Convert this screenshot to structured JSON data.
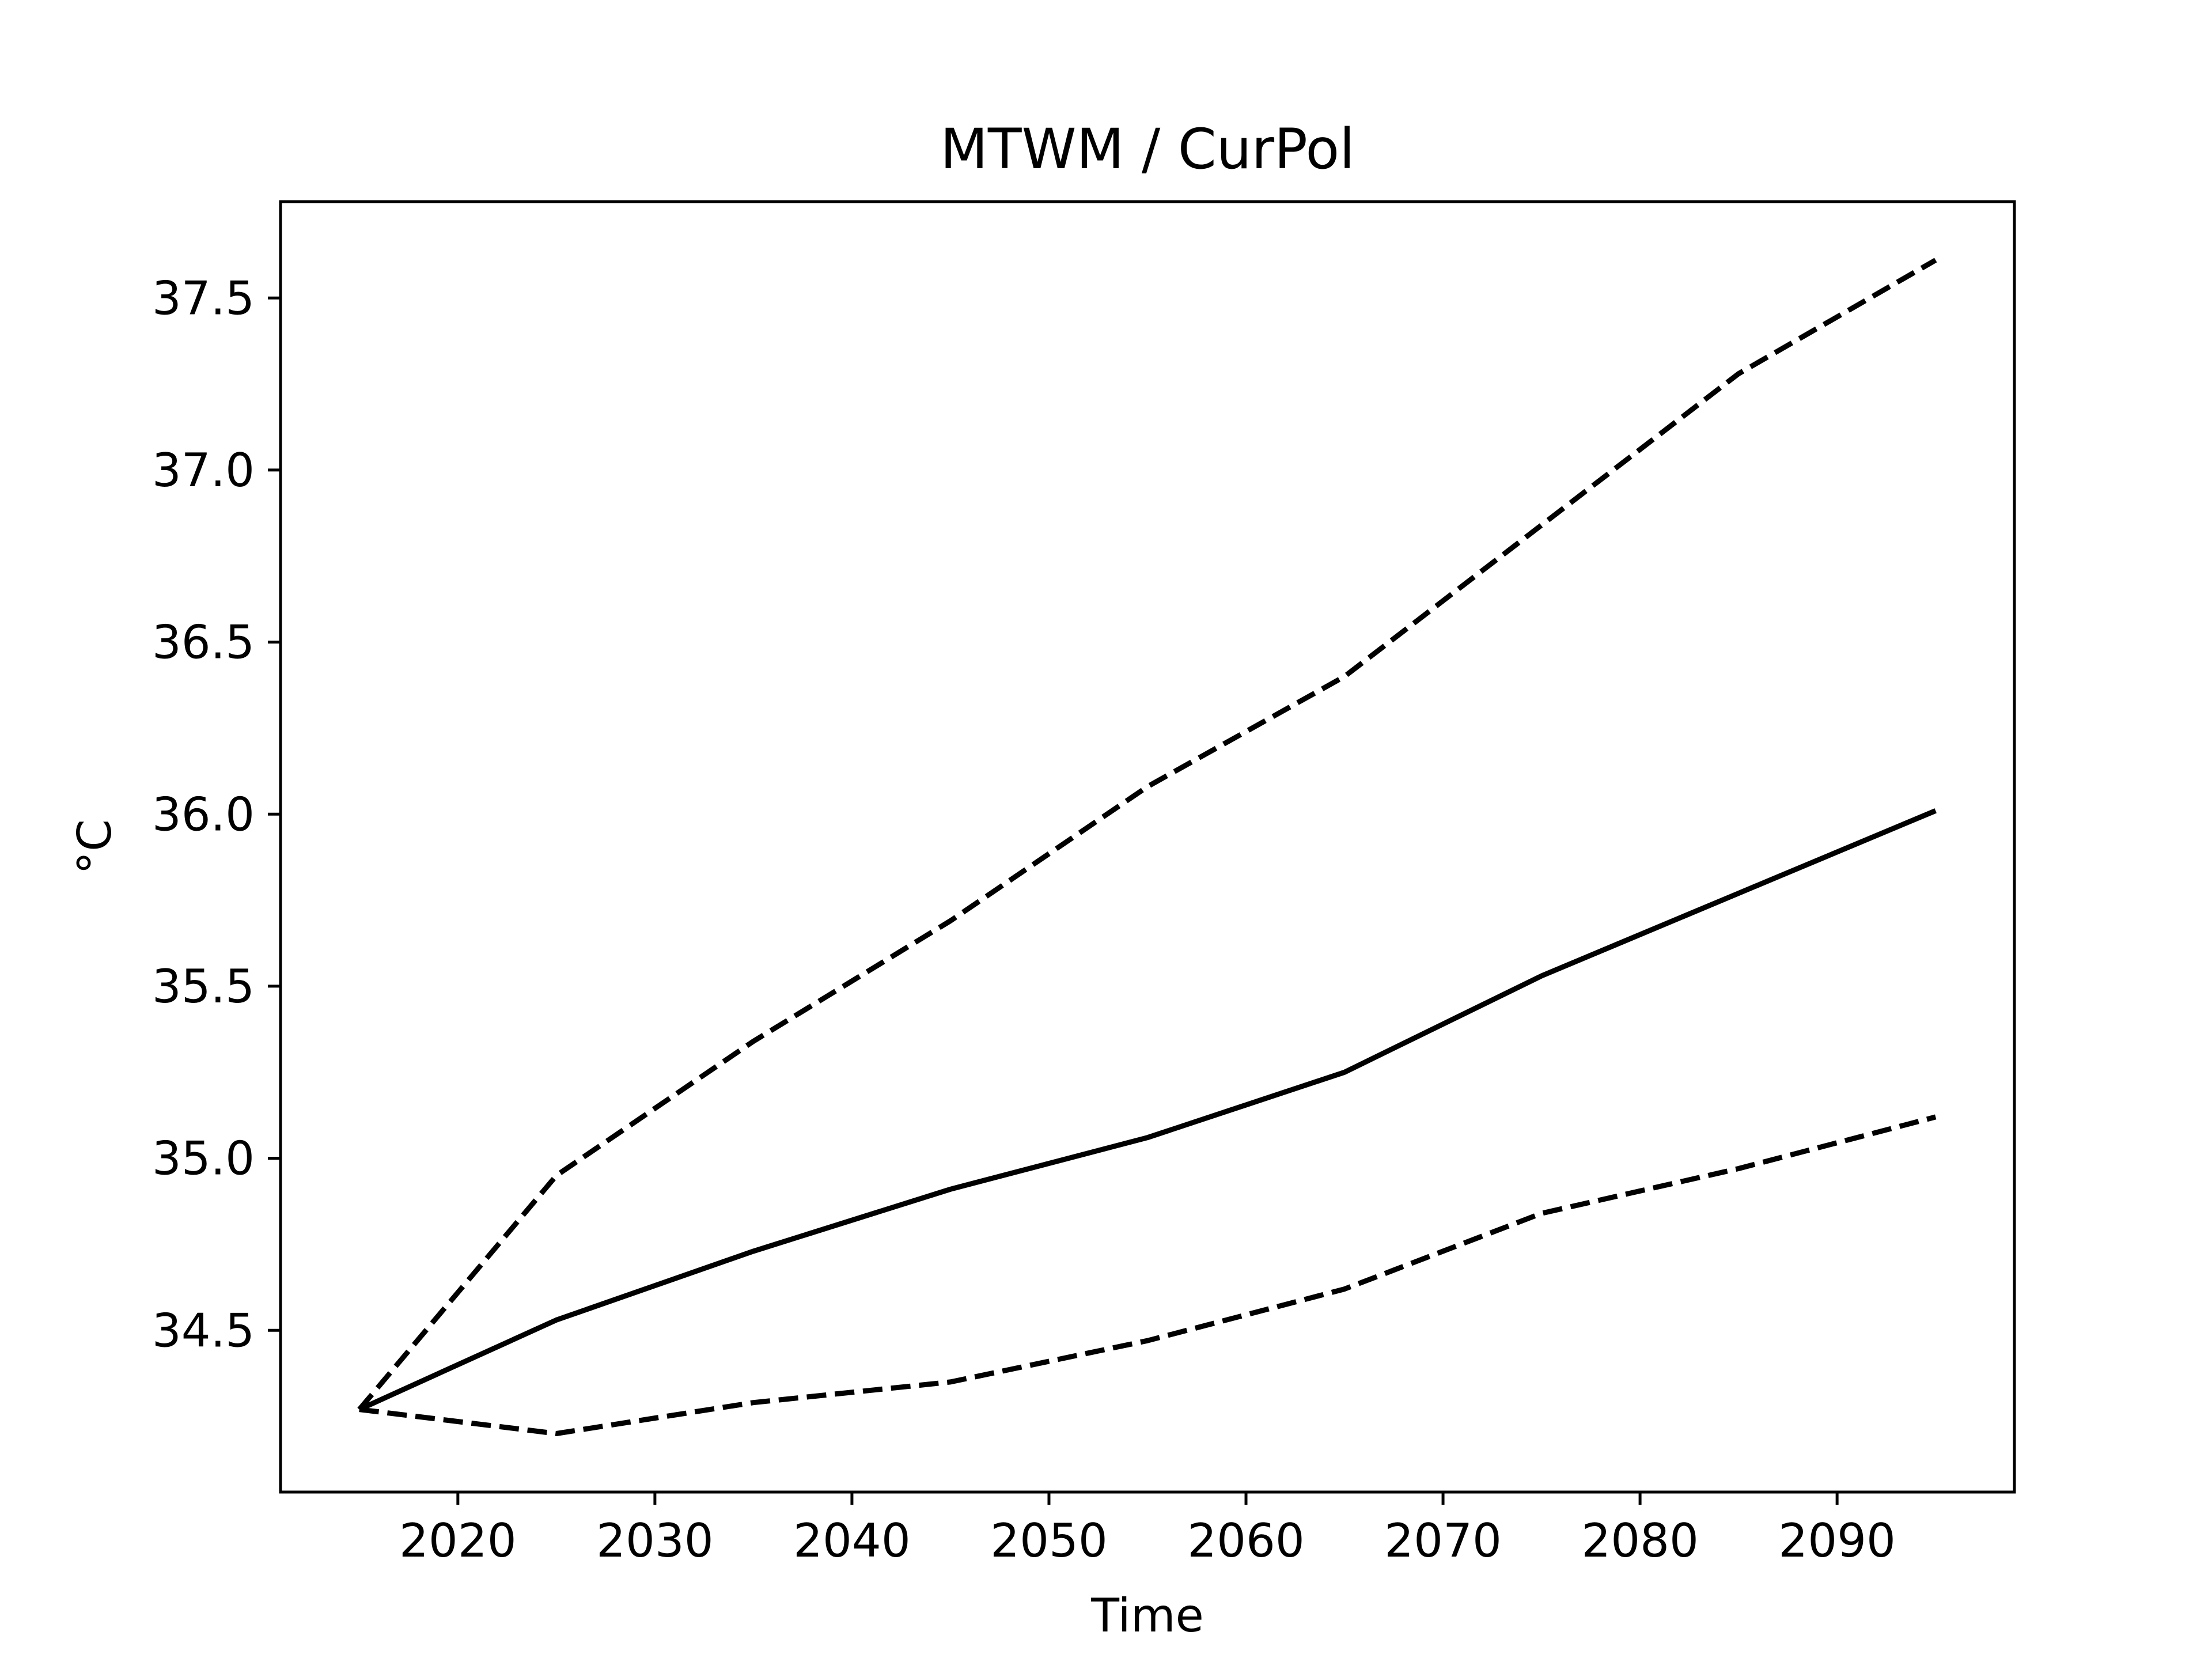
{
  "chart_data": {
    "type": "line",
    "title": "MTWM / CurPol",
    "xlabel": "Time",
    "ylabel": "°C",
    "xlim": [
      2011.0,
      2099.0
    ],
    "ylim": [
      34.03,
      37.78
    ],
    "xticks": [
      2020,
      2030,
      2040,
      2050,
      2060,
      2070,
      2080,
      2090
    ],
    "xtick_labels": [
      "2020",
      "2030",
      "2040",
      "2050",
      "2060",
      "2070",
      "2080",
      "2090"
    ],
    "yticks": [
      34.5,
      35.0,
      35.5,
      36.0,
      36.5,
      37.0,
      37.5
    ],
    "ytick_labels": [
      "34.5",
      "35.0",
      "35.5",
      "36.0",
      "36.5",
      "37.0",
      "37.5"
    ],
    "grid": false,
    "legend": "none",
    "x": [
      2015,
      2025,
      2035,
      2045,
      2055,
      2065,
      2075,
      2085,
      2095
    ],
    "series": [
      {
        "style": "dashed",
        "color": "#000000",
        "values": [
          34.27,
          34.95,
          35.34,
          35.69,
          36.08,
          36.4,
          36.84,
          37.28,
          37.61
        ]
      },
      {
        "style": "solid",
        "color": "#000000",
        "values": [
          34.27,
          34.53,
          34.73,
          34.91,
          35.06,
          35.25,
          35.53,
          35.77,
          36.01
        ]
      },
      {
        "style": "dashed",
        "color": "#000000",
        "values": [
          34.27,
          34.2,
          34.29,
          34.35,
          34.47,
          34.62,
          34.84,
          34.97,
          35.12
        ]
      }
    ]
  }
}
